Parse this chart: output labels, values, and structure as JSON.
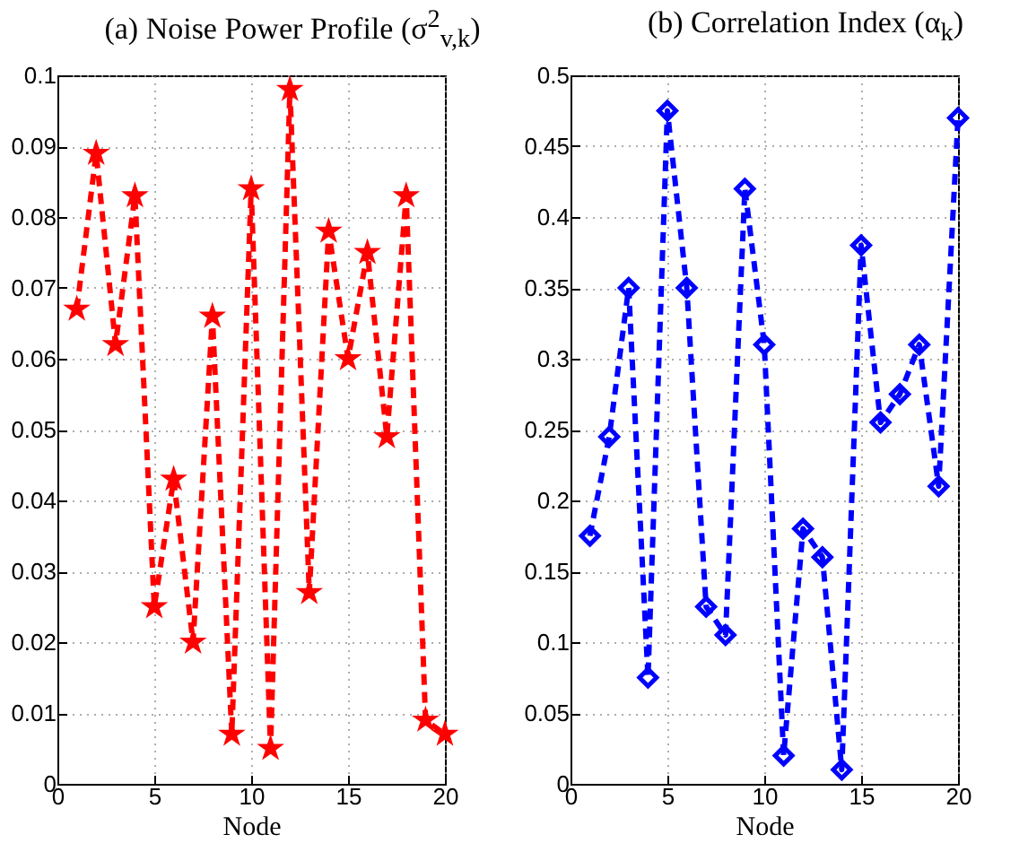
{
  "chart_data": [
    {
      "type": "line",
      "title": "(a) Noise Power Profile (σ$^{2}$$_{v,k}$)",
      "xlabel": "Node",
      "x": [
        1,
        2,
        3,
        4,
        5,
        6,
        7,
        8,
        9,
        10,
        11,
        12,
        13,
        14,
        15,
        16,
        17,
        18,
        19,
        20
      ],
      "series": [
        {
          "color": "#ff0000",
          "values": [
            0.067,
            0.089,
            0.062,
            0.083,
            0.025,
            0.043,
            0.02,
            0.066,
            0.007,
            0.084,
            0.005,
            0.098,
            0.027,
            0.078,
            0.06,
            0.075,
            0.049,
            0.083,
            0.009,
            0.007
          ]
        }
      ],
      "xlim": [
        0,
        20
      ],
      "xticks": [
        0,
        5,
        10,
        15,
        20
      ],
      "ylim": [
        0,
        0.1
      ],
      "yticks": [
        0,
        0.01,
        0.02,
        0.03,
        0.04,
        0.05,
        0.06,
        0.07,
        0.08,
        0.09,
        0.1
      ],
      "grid": true,
      "marker": "star",
      "line_style": "dashed"
    },
    {
      "type": "line",
      "title": "(b) Correlation Index (α$_{k}$)",
      "xlabel": "Node",
      "x": [
        1,
        2,
        3,
        4,
        5,
        6,
        7,
        8,
        9,
        10,
        11,
        12,
        13,
        14,
        15,
        16,
        17,
        18,
        19,
        20
      ],
      "series": [
        {
          "color": "#0000ff",
          "values": [
            0.175,
            0.245,
            0.35,
            0.075,
            0.475,
            0.35,
            0.125,
            0.105,
            0.42,
            0.31,
            0.02,
            0.18,
            0.16,
            0.01,
            0.38,
            0.255,
            0.275,
            0.31,
            0.21,
            0.47
          ]
        }
      ],
      "xlim": [
        0,
        20
      ],
      "xticks": [
        0,
        5,
        10,
        15,
        20
      ],
      "ylim": [
        0,
        0.5
      ],
      "yticks": [
        0,
        0.05,
        0.1,
        0.15,
        0.2,
        0.25,
        0.3,
        0.35,
        0.4,
        0.45,
        0.5
      ],
      "grid": true,
      "marker": "diamond",
      "line_style": "dashed"
    }
  ]
}
